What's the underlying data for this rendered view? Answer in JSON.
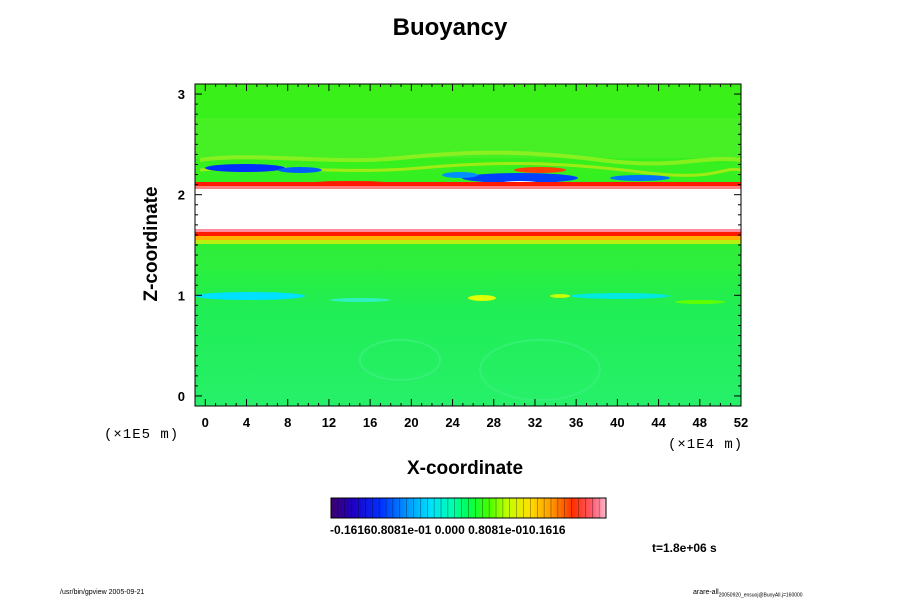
{
  "chart_data": {
    "type": "heatmap",
    "title": "Buoyancy",
    "xlabel": "X-coordinate",
    "ylabel": "Z-coordinate",
    "x_unit": "(×1E4 m)",
    "z_unit": "(×1E5 m)",
    "xlim": [
      -1,
      52
    ],
    "ylim": [
      -0.1,
      3.1
    ],
    "x_ticks": [
      "0",
      "4",
      "8",
      "12",
      "16",
      "20",
      "24",
      "28",
      "32",
      "36",
      "40",
      "44",
      "48",
      "52"
    ],
    "y_ticks": [
      "0",
      "1",
      "2",
      "3"
    ],
    "colorbar": {
      "min": -0.1616,
      "max": 0.1616,
      "tick_labels_text": "-0.16160.8081e-01 0.000 0.8081e-010.1616",
      "colors": [
        "#3d006b",
        "#1d00c4",
        "#0030ff",
        "#0099ff",
        "#00e0ff",
        "#00ffb0",
        "#00ff60",
        "#00ff00",
        "#7dff00",
        "#e0ff00",
        "#ffe000",
        "#ffaa00",
        "#ff6000",
        "#ff2000",
        "#ff5a70",
        "#ffb8cc"
      ]
    },
    "field_features": [
      {
        "feature": "white band (values beyond colorbar range)",
        "z_range": [
          1.62,
          2.1
        ]
      },
      {
        "feature": "red strong positive boundary",
        "z": 1.62
      },
      {
        "feature": "red strong positive boundary",
        "z": 2.12
      },
      {
        "feature": "blue negative patches",
        "z": 2.25,
        "x": [
          2,
          6
        ]
      },
      {
        "feature": "blue negative patches",
        "z": 2.15,
        "x": [
          28,
          36
        ]
      },
      {
        "feature": "cyan negative band",
        "z": 0.97,
        "x": [
          2,
          10
        ]
      },
      {
        "feature": "cyan negative band",
        "z": 0.95,
        "x": [
          34,
          44
        ]
      },
      {
        "feature": "yellow positive spots",
        "z": 0.95,
        "x": [
          26,
          28
        ]
      }
    ],
    "time_label": "t=1.8e+06 s"
  },
  "footer": {
    "left": "/usr/bin/gpview 2005-09-21",
    "right_main": "arare-all",
    "right_sub": "20050920_ensuoj@BuoyAll.j=160000"
  }
}
